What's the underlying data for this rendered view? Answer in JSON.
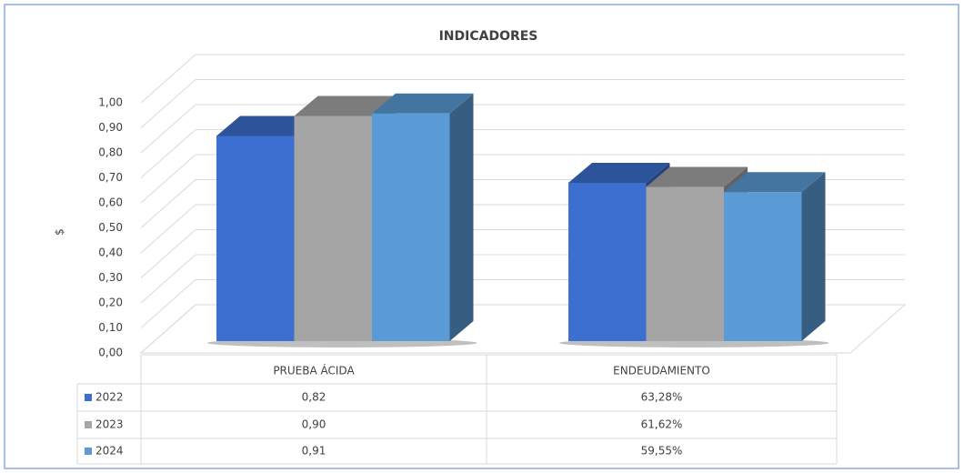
{
  "chart_data": {
    "type": "bar3d",
    "title": "INDICADORES",
    "y_label": "$",
    "categories": [
      "PRUEBA ÁCIDA",
      "ENDEUDAMIENTO"
    ],
    "series": [
      {
        "name": "2022",
        "color": "#3c6fcf",
        "values": [
          0.82,
          0.6328
        ],
        "value_labels": [
          "0,82",
          "63,28%"
        ]
      },
      {
        "name": "2023",
        "color": "#a5a5a5",
        "values": [
          0.9,
          0.6162
        ],
        "value_labels": [
          "0,90",
          "61,62%"
        ]
      },
      {
        "name": "2024",
        "color": "#5b9bd5",
        "values": [
          0.91,
          0.5955
        ],
        "value_labels": [
          "0,91",
          "59,55%"
        ]
      }
    ],
    "ylim": [
      0,
      1
    ],
    "yticks": [
      {
        "value": 0,
        "label": "0,00"
      },
      {
        "value": 0.1,
        "label": "0,10"
      },
      {
        "value": 0.2,
        "label": "0,20"
      },
      {
        "value": 0.3,
        "label": "0,30"
      },
      {
        "value": 0.4,
        "label": "0,40"
      },
      {
        "value": 0.5,
        "label": "0,50"
      },
      {
        "value": 0.6,
        "label": "0,60"
      },
      {
        "value": 0.7,
        "label": "0,70"
      },
      {
        "value": 0.8,
        "label": "0,80"
      },
      {
        "value": 0.9,
        "label": "0,90"
      },
      {
        "value": 1,
        "label": "1,00"
      }
    ],
    "grid": true,
    "data_table": true
  }
}
